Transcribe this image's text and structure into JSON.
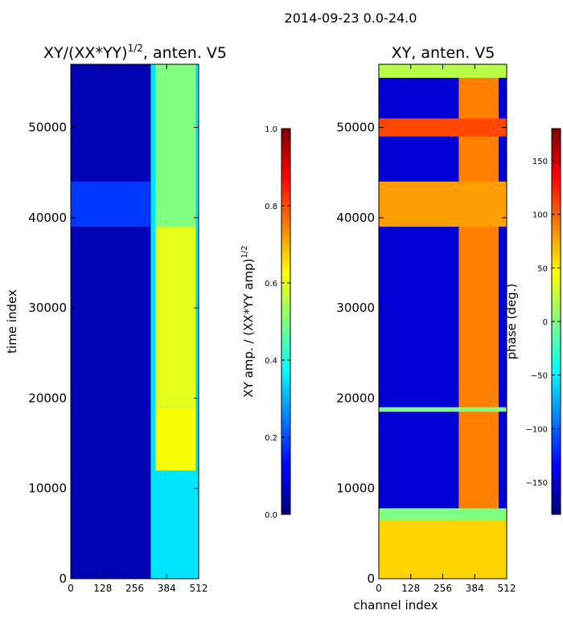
{
  "chart_data": {
    "suptitle": "2014-09-23 0.0-24.0",
    "panels": [
      {
        "id": "amp",
        "type": "heatmap",
        "title": "XY/(XX*YY)^{1/2}, anten. V5",
        "title_main": "XY/(XX*YY)",
        "title_exp": "1/2",
        "title_rest": ", anten. V5",
        "xlabel": "",
        "ylabel": "time index",
        "xlim": [
          0,
          512
        ],
        "ylim": [
          0,
          57000
        ],
        "xticks": [
          0,
          128,
          256,
          384,
          512
        ],
        "xtick_labels": [
          "0",
          "128",
          "256",
          "384",
          "512"
        ],
        "yticks": [
          0,
          10000,
          20000,
          30000,
          40000,
          50000
        ],
        "ytick_labels": [
          "0",
          "10000",
          "20000",
          "30000",
          "40000",
          "50000"
        ],
        "colorbar": {
          "label": "XY amp. / (XX*YY amp)^{1/2}",
          "label_main": "XY amp. / (XX*YY amp)",
          "label_exp": "1/2",
          "range": [
            0.0,
            1.0
          ],
          "ticks": [
            0.0,
            0.2,
            0.4,
            0.6,
            0.8,
            1.0
          ],
          "tick_labels": [
            "0.0",
            "0.2",
            "0.4",
            "0.6",
            "0.8",
            "1.0"
          ],
          "colormap": "jet"
        },
        "regions": [
          {
            "x": [
              0,
              512
            ],
            "y": [
              0,
              57000
            ],
            "value": 0.05
          },
          {
            "x": [
              320,
              512
            ],
            "y": [
              0,
              57000
            ],
            "value": 0.35
          },
          {
            "x": [
              340,
              500
            ],
            "y": [
              12000,
              19000
            ],
            "value": 0.62
          },
          {
            "x": [
              340,
              500
            ],
            "y": [
              19000,
              39000
            ],
            "value": 0.6
          },
          {
            "x": [
              340,
              500
            ],
            "y": [
              39000,
              57000
            ],
            "value": 0.5
          },
          {
            "x": [
              0,
              320
            ],
            "y": [
              39000,
              44000
            ],
            "value": 0.18
          }
        ]
      },
      {
        "id": "phase",
        "type": "heatmap",
        "title": "XY, anten. V5",
        "xlabel": "channel index",
        "ylabel": "",
        "xlim": [
          0,
          512
        ],
        "ylim": [
          0,
          57000
        ],
        "xticks": [
          0,
          128,
          256,
          384,
          512
        ],
        "xtick_labels": [
          "0",
          "128",
          "256",
          "384",
          "512"
        ],
        "yticks": [
          0,
          10000,
          20000,
          30000,
          40000,
          50000
        ],
        "ytick_labels": [
          "0",
          "10000",
          "20000",
          "30000",
          "40000",
          "50000"
        ],
        "colorbar": {
          "label": "phase (deg.)",
          "range": [
            -180,
            180
          ],
          "ticks": [
            -150,
            -100,
            -50,
            0,
            50,
            100,
            150
          ],
          "tick_labels": [
            "−150",
            "−100",
            "−50",
            "0",
            "50",
            "100",
            "150"
          ],
          "colormap": "jet"
        },
        "regions": [
          {
            "x": [
              0,
              512
            ],
            "y": [
              0,
              57000
            ],
            "value": -150
          },
          {
            "x": [
              320,
              480
            ],
            "y": [
              0,
              57000
            ],
            "value": 90
          },
          {
            "x": [
              0,
              512
            ],
            "y": [
              0,
              6500
            ],
            "value": 60
          },
          {
            "x": [
              0,
              512
            ],
            "y": [
              6500,
              7800
            ],
            "value": 0
          },
          {
            "x": [
              0,
              512
            ],
            "y": [
              18500,
              19000
            ],
            "value": 0
          },
          {
            "x": [
              0,
              512
            ],
            "y": [
              39000,
              44000
            ],
            "value": 80
          },
          {
            "x": [
              0,
              512
            ],
            "y": [
              49000,
              51000
            ],
            "value": 110
          },
          {
            "x": [
              0,
              512
            ],
            "y": [
              55500,
              57000
            ],
            "value": 20
          }
        ]
      }
    ]
  }
}
